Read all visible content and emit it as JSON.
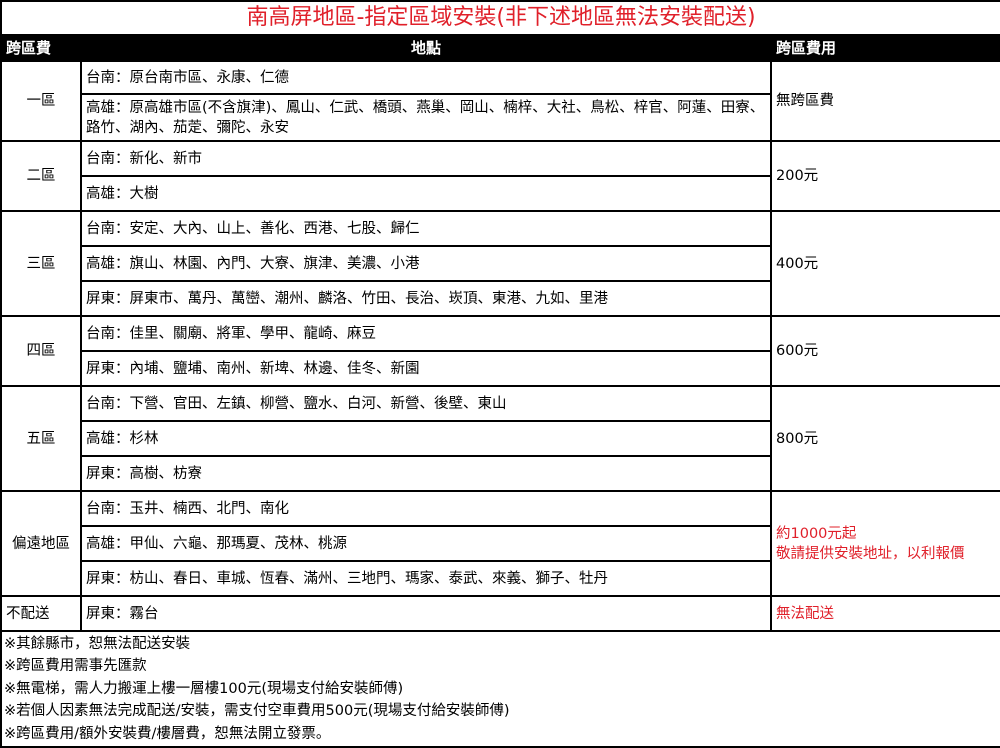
{
  "title": "南高屏地區-指定區域安裝(非下述地區無法安裝配送)",
  "headers": {
    "zone": "跨區費",
    "location": "地點",
    "fee": "跨區費用"
  },
  "accent_color": "#e0202a",
  "zones": [
    {
      "name": "一區",
      "fee": "無跨區費",
      "fee_red": false,
      "rows": [
        {
          "text": "台南：原台南市區、永康、仁德",
          "h": 33
        },
        {
          "text": "高雄：原高雄市區(不含旗津)、鳳山、仁武、橋頭、燕巢、岡山、楠梓、大社、鳥松、梓官、阿蓮、田寮、路竹、湖內、茄萣、彌陀、永安",
          "h": 47
        }
      ]
    },
    {
      "name": "二區",
      "fee": "200元",
      "fee_red": false,
      "rows": [
        {
          "text": "台南：新化、新市",
          "h": 35
        },
        {
          "text": "高雄：大樹",
          "h": 35
        }
      ]
    },
    {
      "name": "三區",
      "fee": "400元",
      "fee_red": false,
      "rows": [
        {
          "text": "台南：安定、大內、山上、善化、西港、七股、歸仁",
          "h": 35
        },
        {
          "text": "高雄：旗山、林園、內門、大寮、旗津、美濃、小港",
          "h": 35
        },
        {
          "text": "屏東：屏東市、萬丹、萬巒、潮州、麟洛、竹田、長治、崁頂、東港、九如、里港",
          "h": 35
        }
      ]
    },
    {
      "name": "四區",
      "fee": "600元",
      "fee_red": false,
      "rows": [
        {
          "text": "台南：佳里、關廟、將軍、學甲、龍崎、麻豆",
          "h": 35
        },
        {
          "text": "屏東：內埔、鹽埔、南州、新埤、林邊、佳冬、新園",
          "h": 35
        }
      ]
    },
    {
      "name": "五區",
      "fee": "800元",
      "fee_red": false,
      "rows": [
        {
          "text": "台南：下營、官田、左鎮、柳營、鹽水、白河、新營、後壁、東山",
          "h": 35
        },
        {
          "text": "高雄：杉林",
          "h": 35
        },
        {
          "text": "屏東：高樹、枋寮",
          "h": 35
        }
      ]
    },
    {
      "name": "偏遠地區",
      "fee": "約1000元起",
      "fee2": "敬請提供安裝地址，以利報價",
      "fee_red": true,
      "rows": [
        {
          "text": "台南：玉井、楠西、北門、南化",
          "h": 35
        },
        {
          "text": "高雄：甲仙、六龜、那瑪夏、茂林、桃源",
          "h": 35
        },
        {
          "text": "屏東：枋山、春日、車城、恆春、滿州、三地門、瑪家、泰武、來義、獅子、牡丹",
          "h": 35
        }
      ]
    },
    {
      "name": "不配送",
      "fee": "無法配送",
      "fee_red": true,
      "align_left": true,
      "rows": [
        {
          "text": "屏東：霧台",
          "h": 35
        }
      ]
    }
  ],
  "notes": [
    "※其餘縣市，恕無法配送安裝",
    "※跨區費用需事先匯款",
    "※無電梯，需人力搬運上樓一層樓100元(現場支付給安裝師傅)",
    "※若個人因素無法完成配送/安裝，需支付空車費用500元(現場支付給安裝師傅)",
    "※跨區費用/額外安裝費/樓層費，恕無法開立發票。"
  ]
}
